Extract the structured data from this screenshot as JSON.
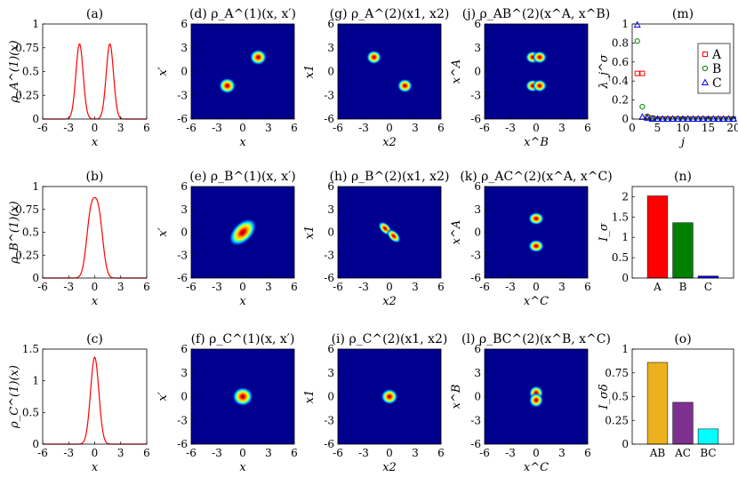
{
  "colors": {
    "line": "#ff0000",
    "heatmap_bg": "#00008f"
  },
  "chart_data": [
    {
      "id": "a",
      "type": "line",
      "title": "(a)",
      "xlabel": "x",
      "ylabel": "ρ_A^(1)(x)",
      "xlim": [
        -6,
        6
      ],
      "ylim": [
        0,
        1
      ],
      "xticks": [
        "-6",
        "-3",
        "0",
        "3",
        "6"
      ],
      "yticks": [
        "0",
        "0.25",
        "0.5",
        "0.75",
        "1"
      ],
      "series": [
        {
          "type": "double-peak",
          "centers": [
            -1.75,
            1.75
          ],
          "height": 0.79,
          "width": 0.42
        }
      ]
    },
    {
      "id": "b",
      "type": "line",
      "title": "(b)",
      "xlabel": "x",
      "ylabel": "ρ_B^(1)(x)",
      "xlim": [
        -6,
        6
      ],
      "ylim": [
        0,
        1
      ],
      "xticks": [
        "-6",
        "-3",
        "0",
        "3",
        "6"
      ],
      "yticks": [
        "0",
        "0.25",
        "0.5",
        "0.75",
        "1"
      ],
      "series": [
        {
          "type": "double-peak",
          "centers": [
            -0.45,
            0.45
          ],
          "height": 0.88,
          "width": 0.5
        }
      ]
    },
    {
      "id": "c",
      "type": "line",
      "title": "(c)",
      "xlabel": "x",
      "ylabel": "ρ_C^(1)(x)",
      "xlim": [
        -6,
        6
      ],
      "ylim": [
        0,
        1.5
      ],
      "xticks": [
        "-6",
        "-3",
        "0",
        "3",
        "6"
      ],
      "yticks": [
        "0",
        "0.5",
        "1",
        "1.5"
      ],
      "series": [
        {
          "type": "single-peak",
          "centers": [
            0
          ],
          "height": 1.37,
          "width": 0.48
        }
      ]
    },
    {
      "id": "d",
      "type": "heatmap",
      "title": "(d) ρ_A^(1)(x, x′)",
      "xlabel": "x",
      "ylabel": "x′",
      "xlim": [
        -6,
        6
      ],
      "ylim": [
        -6,
        6
      ],
      "xticks": [
        "-6",
        "-3",
        "0",
        "3",
        "6"
      ],
      "yticks": [
        "-6",
        "-3",
        "0",
        "3",
        "6"
      ],
      "blobs": [
        {
          "x": -1.8,
          "y": -1.8,
          "sx": 0.45,
          "sy": 0.45
        },
        {
          "x": 1.8,
          "y": 1.8,
          "sx": 0.45,
          "sy": 0.45
        }
      ]
    },
    {
      "id": "e",
      "type": "heatmap",
      "title": "(e) ρ_B^(1)(x, x′)",
      "xlabel": "x",
      "ylabel": "x′",
      "xlim": [
        -6,
        6
      ],
      "ylim": [
        -6,
        6
      ],
      "xticks": [
        "-6",
        "-3",
        "0",
        "3",
        "6"
      ],
      "yticks": [
        "-6",
        "-3",
        "0",
        "3",
        "6"
      ],
      "blobs": [
        {
          "x": 0,
          "y": 0,
          "sx": 0.9,
          "sy": 0.6,
          "rot": 45
        }
      ]
    },
    {
      "id": "f",
      "type": "heatmap",
      "title": "(f) ρ_C^(1)(x, x′)",
      "xlabel": "x",
      "ylabel": "x′",
      "xlim": [
        -6,
        6
      ],
      "ylim": [
        -6,
        6
      ],
      "xticks": [
        "-6",
        "-3",
        "0",
        "3",
        "6"
      ],
      "yticks": [
        "-6",
        "-3",
        "0",
        "3",
        "6"
      ],
      "blobs": [
        {
          "x": 0,
          "y": 0,
          "sx": 0.55,
          "sy": 0.55
        }
      ]
    },
    {
      "id": "g",
      "type": "heatmap",
      "title": "(g) ρ_A^(2)(x1, x2)",
      "xlabel": "x2",
      "ylabel": "x1",
      "xlim": [
        -6,
        6
      ],
      "ylim": [
        -6,
        6
      ],
      "xticks": [
        "-6",
        "-3",
        "0",
        "3",
        "6"
      ],
      "yticks": [
        "-6",
        "-3",
        "0",
        "3",
        "6"
      ],
      "blobs": [
        {
          "x": -1.8,
          "y": 1.8,
          "sx": 0.4,
          "sy": 0.4
        },
        {
          "x": 1.8,
          "y": -1.8,
          "sx": 0.4,
          "sy": 0.4
        }
      ]
    },
    {
      "id": "h",
      "type": "heatmap",
      "title": "(h) ρ_B^(2)(x1, x2)",
      "xlabel": "x2",
      "ylabel": "x1",
      "xlim": [
        -6,
        6
      ],
      "ylim": [
        -6,
        6
      ],
      "xticks": [
        "-6",
        "-3",
        "0",
        "3",
        "6"
      ],
      "yticks": [
        "-6",
        "-3",
        "0",
        "3",
        "6"
      ],
      "blobs": [
        {
          "x": -0.5,
          "y": 0.5,
          "sx": 0.45,
          "sy": 0.3,
          "rot": -45
        },
        {
          "x": 0.5,
          "y": -0.5,
          "sx": 0.45,
          "sy": 0.3,
          "rot": -45
        }
      ]
    },
    {
      "id": "i",
      "type": "heatmap",
      "title": "(i) ρ_C^(2)(x1, x2)",
      "xlabel": "x2",
      "ylabel": "x1",
      "xlim": [
        -6,
        6
      ],
      "ylim": [
        -6,
        6
      ],
      "xticks": [
        "-6",
        "-3",
        "0",
        "3",
        "6"
      ],
      "yticks": [
        "-6",
        "-3",
        "0",
        "3",
        "6"
      ],
      "blobs": [
        {
          "x": 0,
          "y": 0,
          "sx": 0.45,
          "sy": 0.45
        }
      ]
    },
    {
      "id": "j",
      "type": "heatmap",
      "title": "(j) ρ_AB^(2)(x^A, x^B)",
      "xlabel": "x^B",
      "ylabel": "x^A",
      "xlim": [
        -6,
        6
      ],
      "ylim": [
        -6,
        6
      ],
      "xticks": [
        "-6",
        "-3",
        "0",
        "3",
        "6"
      ],
      "yticks": [
        "-6",
        "-3",
        "0",
        "3",
        "6"
      ],
      "blobs": [
        {
          "x": -0.4,
          "y": 1.8,
          "sx": 0.38,
          "sy": 0.36
        },
        {
          "x": 0.4,
          "y": 1.8,
          "sx": 0.38,
          "sy": 0.36
        },
        {
          "x": -0.4,
          "y": -1.8,
          "sx": 0.38,
          "sy": 0.36
        },
        {
          "x": 0.4,
          "y": -1.8,
          "sx": 0.38,
          "sy": 0.36
        }
      ]
    },
    {
      "id": "k",
      "type": "heatmap",
      "title": "(k) ρ_AC^(2)(x^A, x^C)",
      "xlabel": "x^C",
      "ylabel": "x^A",
      "xlim": [
        -6,
        6
      ],
      "ylim": [
        -6,
        6
      ],
      "xticks": [
        "-6",
        "-3",
        "0",
        "3",
        "6"
      ],
      "yticks": [
        "-6",
        "-3",
        "0",
        "3",
        "6"
      ],
      "blobs": [
        {
          "x": 0,
          "y": 1.8,
          "sx": 0.42,
          "sy": 0.38
        },
        {
          "x": 0,
          "y": -1.8,
          "sx": 0.42,
          "sy": 0.38
        }
      ]
    },
    {
      "id": "l",
      "type": "heatmap",
      "title": "(l) ρ_BC^(2)(x^B, x^C)",
      "xlabel": "x^C",
      "ylabel": "x^B",
      "xlim": [
        -6,
        6
      ],
      "ylim": [
        -6,
        6
      ],
      "xticks": [
        "-6",
        "-3",
        "0",
        "3",
        "6"
      ],
      "yticks": [
        "-6",
        "-3",
        "0",
        "3",
        "6"
      ],
      "blobs": [
        {
          "x": 0,
          "y": 0.45,
          "sx": 0.38,
          "sy": 0.42
        },
        {
          "x": 0,
          "y": -0.45,
          "sx": 0.38,
          "sy": 0.42
        }
      ]
    },
    {
      "id": "m",
      "type": "scatter",
      "title": "(m)",
      "xlabel": "j",
      "ylabel": "λ_j^σ",
      "xlim": [
        0,
        20
      ],
      "ylim": [
        0,
        1
      ],
      "xticks": [
        "0",
        "5",
        "10",
        "15",
        "20"
      ],
      "yticks": [
        "0",
        "0.2",
        "0.4",
        "0.6",
        "0.8",
        "1"
      ],
      "legend_position": "top-right",
      "series": [
        {
          "name": "A",
          "marker": "square",
          "color": "#ff0000",
          "x": [
            1,
            2,
            3,
            4,
            5,
            6,
            7,
            8,
            9,
            10,
            11,
            12,
            13,
            14,
            15,
            16,
            17,
            18,
            19,
            20
          ],
          "y": [
            0.48,
            0.48,
            0.02,
            0.01,
            0,
            0,
            0,
            0,
            0,
            0,
            0,
            0,
            0,
            0,
            0,
            0,
            0,
            0,
            0,
            0
          ]
        },
        {
          "name": "B",
          "marker": "circle",
          "color": "#008000",
          "x": [
            1,
            2,
            3,
            4,
            5,
            6,
            7,
            8,
            9,
            10,
            11,
            12,
            13,
            14,
            15,
            16,
            17,
            18,
            19,
            20
          ],
          "y": [
            0.82,
            0.13,
            0.03,
            0.01,
            0,
            0,
            0,
            0,
            0,
            0,
            0,
            0,
            0,
            0,
            0,
            0,
            0,
            0,
            0,
            0
          ]
        },
        {
          "name": "C",
          "marker": "triangle",
          "color": "#0000ff",
          "x": [
            1,
            2,
            3,
            4,
            5,
            6,
            7,
            8,
            9,
            10,
            11,
            12,
            13,
            14,
            15,
            16,
            17,
            18,
            19,
            20
          ],
          "y": [
            0.99,
            0.02,
            0.01,
            0,
            0,
            0,
            0,
            0,
            0,
            0,
            0,
            0,
            0,
            0,
            0,
            0,
            0,
            0,
            0,
            0
          ]
        }
      ]
    },
    {
      "id": "n",
      "type": "bar",
      "title": "(n)",
      "xlabel": "",
      "ylabel": "I_σ",
      "ylim": [
        0,
        2.25
      ],
      "yticks": [
        "0",
        "0.5",
        "1",
        "1.5",
        "2"
      ],
      "categories": [
        "A",
        "B",
        "C"
      ],
      "values": [
        2.02,
        1.36,
        0.05
      ],
      "bar_colors": [
        "#ff0000",
        "#008000",
        "#0000ff"
      ]
    },
    {
      "id": "o",
      "type": "bar",
      "title": "(o)",
      "xlabel": "",
      "ylabel": "I_σδ",
      "ylim": [
        0,
        1
      ],
      "yticks": [
        "0",
        "0.25",
        "0.5",
        "0.75",
        "1"
      ],
      "categories": [
        "AB",
        "AC",
        "BC"
      ],
      "values": [
        0.86,
        0.44,
        0.16
      ],
      "bar_colors": [
        "#ebb11f",
        "#7f2f8f",
        "#00ffff"
      ]
    }
  ]
}
